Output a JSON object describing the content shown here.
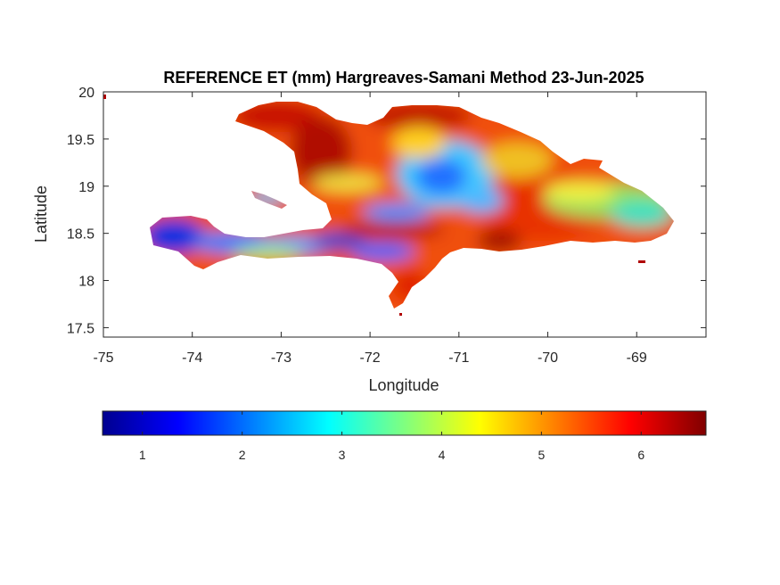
{
  "figure": {
    "title": "REFERENCE ET (mm) Hargreaves-Samani Method  23-Jun-2025",
    "xlabel": "Longitude",
    "ylabel": "Latitude"
  },
  "chart_data": {
    "type": "heatmap",
    "title": "REFERENCE ET (mm) Hargreaves-Samani Method  23-Jun-2025",
    "xlabel": "Longitude",
    "ylabel": "Latitude",
    "xlim": [
      -75,
      -68.22
    ],
    "ylim": [
      17.4,
      20
    ],
    "x_ticks": [
      -75,
      -74,
      -73,
      -72,
      -71,
      -70,
      -69
    ],
    "x_tick_labels": [
      "-75",
      "-74",
      "-73",
      "-72",
      "-71",
      "-70",
      "-69"
    ],
    "y_ticks": [
      17.5,
      18,
      18.5,
      19,
      19.5,
      20
    ],
    "y_tick_labels": [
      "17.5",
      "18",
      "18.5",
      "19",
      "19.5",
      "20"
    ],
    "grid": false,
    "colormap": "jet",
    "colorbar": {
      "orientation": "horizontal",
      "range": [
        0.6,
        6.65
      ],
      "ticks": [
        1,
        2,
        3,
        4,
        5,
        6
      ],
      "tick_labels": [
        "1",
        "2",
        "3",
        "4",
        "5",
        "6"
      ]
    },
    "regions": [
      {
        "name_hint": "tiburon-peninsula-west",
        "lon": -74.2,
        "lat": 18.45,
        "value": 1.6
      },
      {
        "name_hint": "southern-massif",
        "lon": -72.4,
        "lat": 18.38,
        "value": 2.3
      },
      {
        "name_hint": "central-cordillera",
        "lon": -71.1,
        "lat": 19.05,
        "value": 2.8
      },
      {
        "name_hint": "eastern-plains",
        "lon": -69.7,
        "lat": 18.85,
        "value": 3.9
      },
      {
        "name_hint": "northern-coast",
        "lon": -72.7,
        "lat": 19.6,
        "value": 6.2
      },
      {
        "name_hint": "enriquillo-basin",
        "lon": -71.6,
        "lat": 18.45,
        "value": 6.0
      },
      {
        "name_hint": "southeast-coast",
        "lon": -70.3,
        "lat": 18.45,
        "value": 5.6
      }
    ]
  }
}
